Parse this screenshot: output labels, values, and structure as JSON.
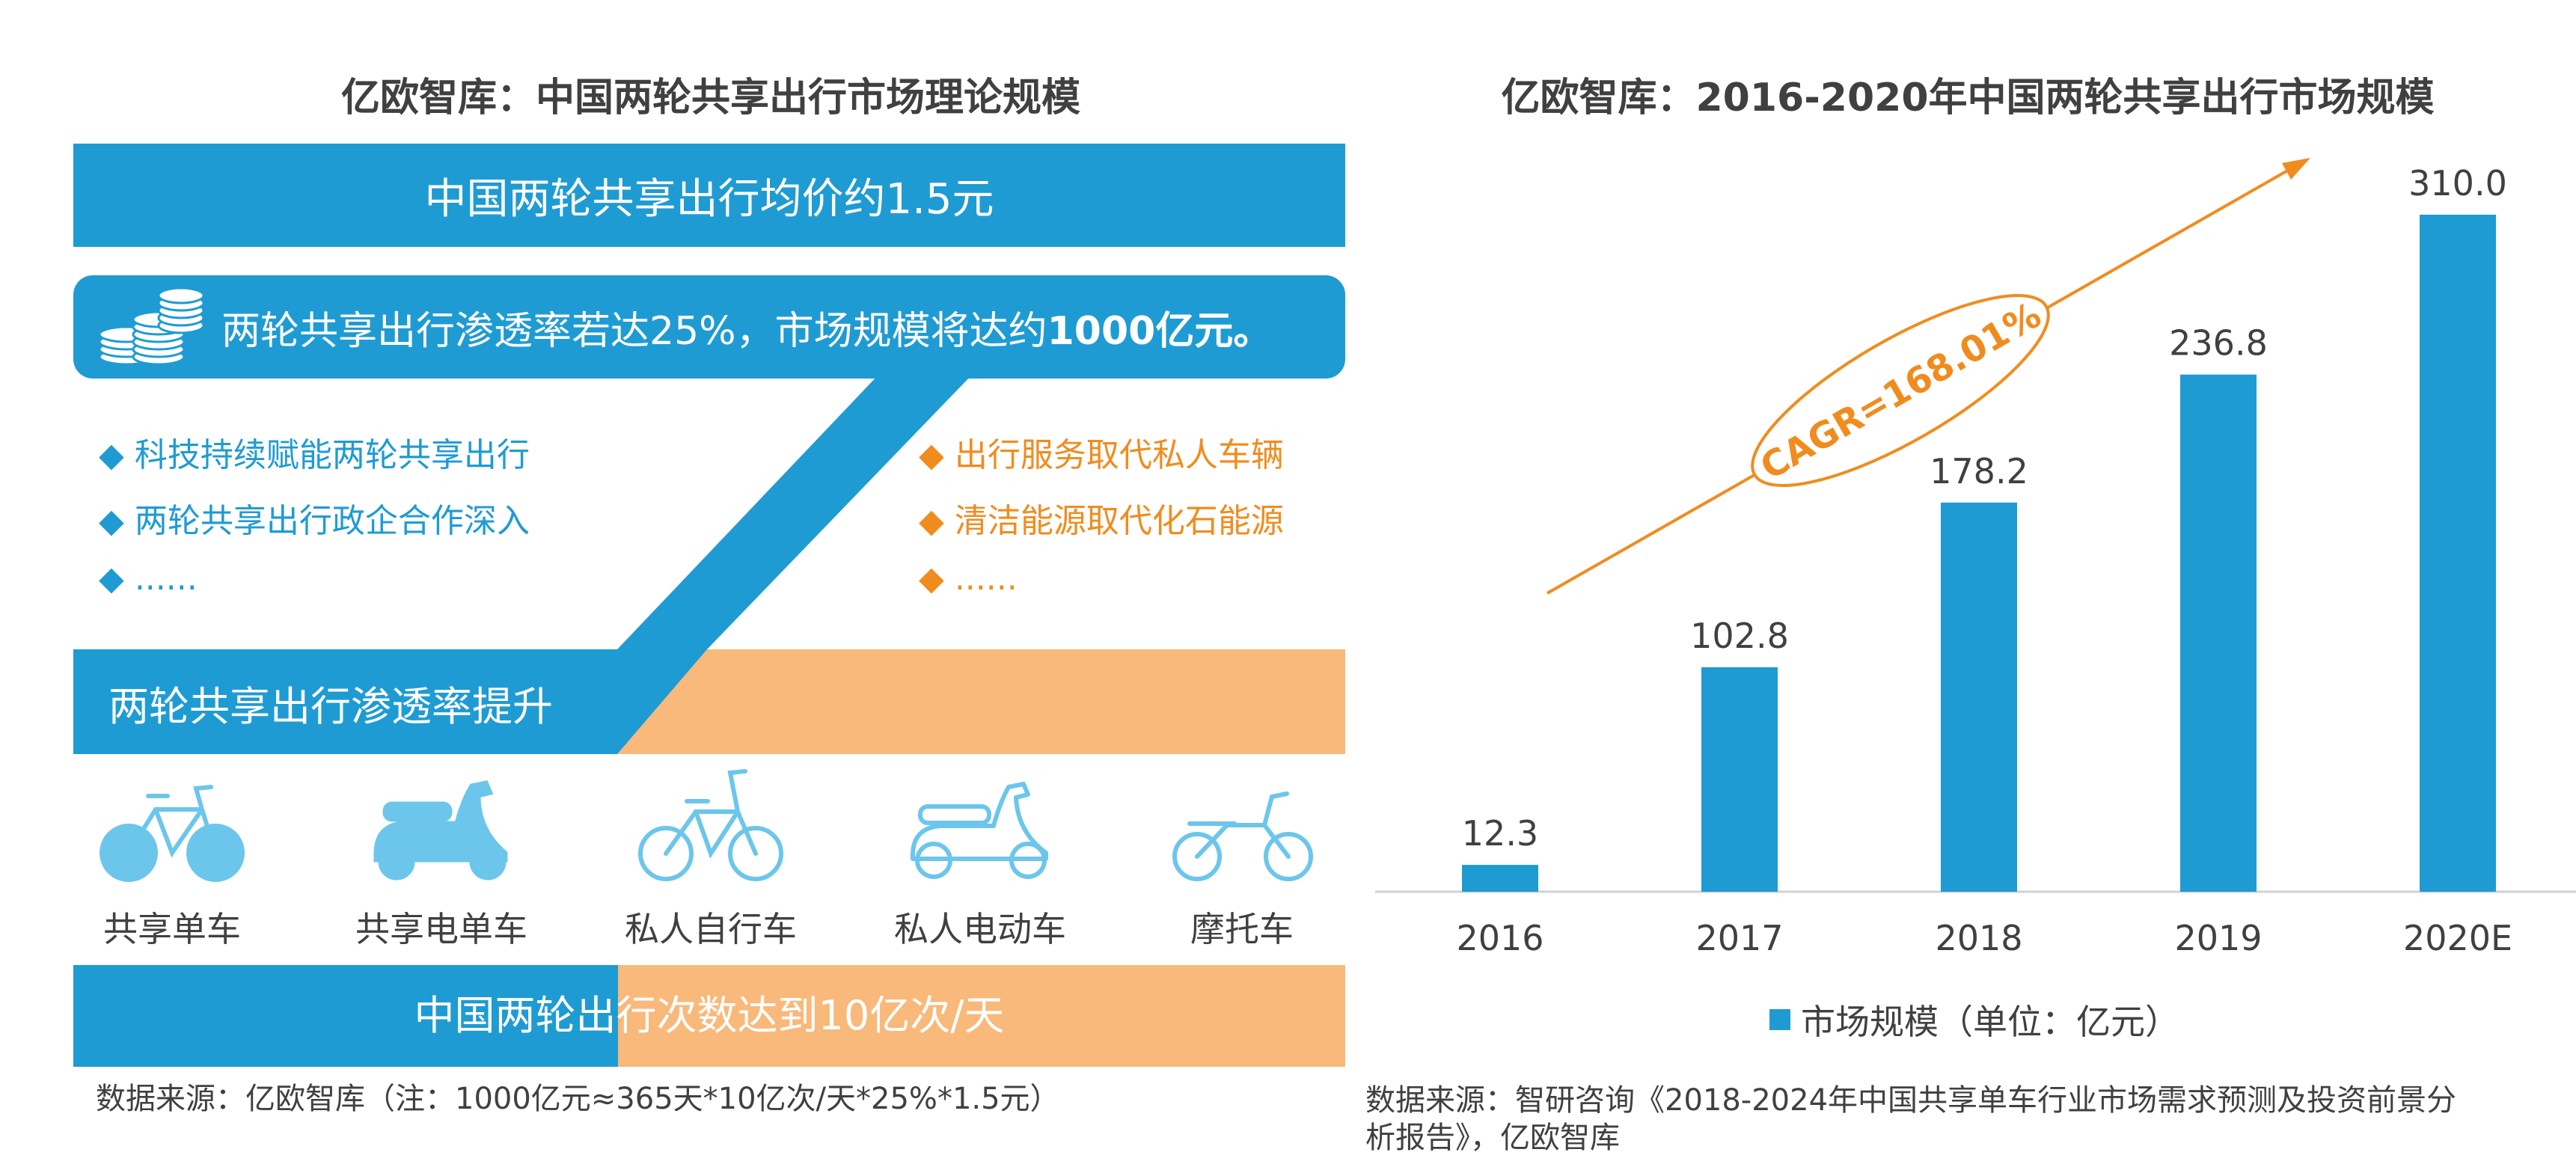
{
  "left": {
    "title": "亿欧智库：中国两轮共享出行市场理论规模",
    "top_band": "中国两轮共享出行均价约1.5元",
    "penetration_prefix": "两轮共享出行渗透率若达25%，市场规模将达约",
    "penetration_bold": "1000亿元。",
    "blue_drivers": [
      "◆ 科技持续赋能两轮共享出行",
      "◆ 两轮共享出行政企合作深入",
      "◆ ......"
    ],
    "orange_drivers": [
      "◆ 出行服务取代私人车辆",
      "◆ 清洁能源取代化石能源",
      "◆ ......"
    ],
    "rise_label": "两轮共享出行渗透率提升",
    "vehicles": [
      {
        "label": "共享单车",
        "icon": "bicycle-icon"
      },
      {
        "label": "共享电单车",
        "icon": "scooter-icon"
      },
      {
        "label": "私人自行车",
        "icon": "bicycle-icon"
      },
      {
        "label": "私人电动车",
        "icon": "scooter-icon"
      },
      {
        "label": "摩托车",
        "icon": "motorcycle-icon"
      }
    ],
    "bottom_band": "中国两轮出行次数达到10亿次/天",
    "source": "数据来源：亿欧智库（注：1000亿元≈365天*10亿次/天*25%*1.5元）"
  },
  "right": {
    "title": "亿欧智库：2016-2020年中国两轮共享出行市场规模",
    "source_line1": "数据来源：智研咨询《2018-2024年中国共享单车行业市场需求预测及投资前景分",
    "source_line2": "析报告》，亿欧智库"
  },
  "colors": {
    "blue": "#1f9bd3",
    "orange": "#f08c1e",
    "light_orange": "#f8b97a",
    "icon_blue": "#6cc6ec"
  },
  "chart_data": {
    "type": "bar",
    "title": "亿欧智库：2016-2020年中国两轮共享出行市场规模",
    "categories": [
      "2016",
      "2017",
      "2018",
      "2019",
      "2020E"
    ],
    "series": [
      {
        "name": "市场规模（单位：亿元）",
        "values": [
          12.3,
          102.8,
          178.2,
          236.8,
          310.0
        ]
      }
    ],
    "data_labels": [
      "12.3",
      "102.8",
      "178.2",
      "236.8",
      "310.0"
    ],
    "annotation": "CAGR=168.01%",
    "legend_position": "bottom",
    "grid": false
  }
}
